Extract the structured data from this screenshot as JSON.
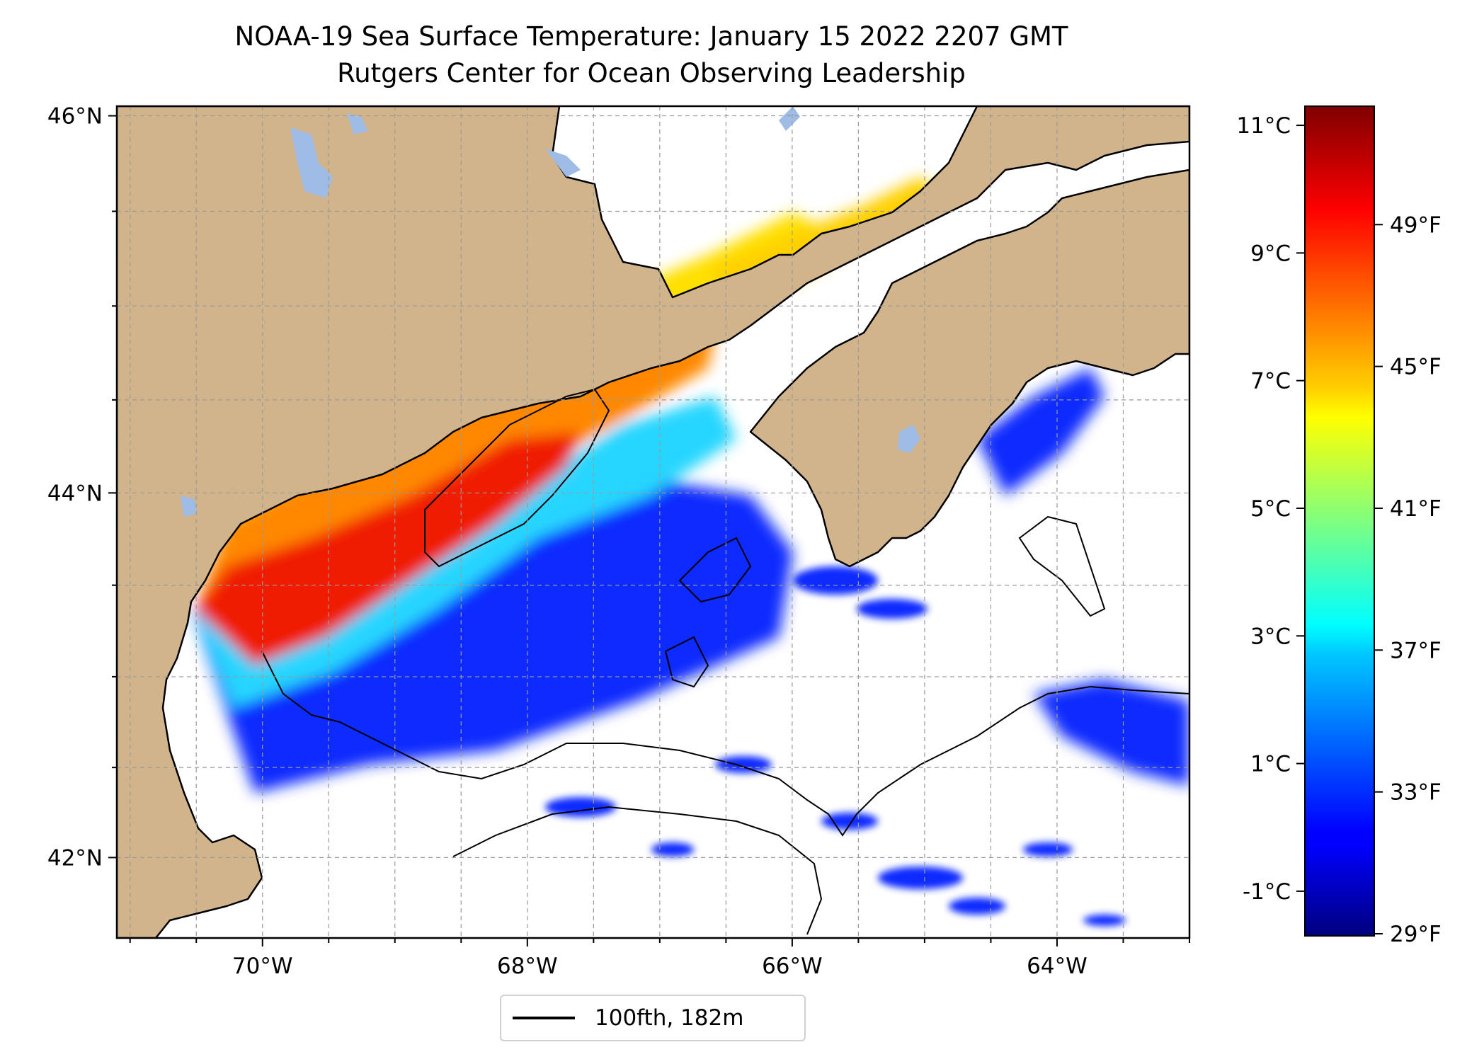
{
  "title": {
    "line1": "NOAA-19 Sea Surface Temperature: January 15 2022 2207 GMT",
    "line2": "Rutgers Center for Ocean Observing Leadership"
  },
  "map": {
    "lon_range": [
      -71.1,
      -63.0
    ],
    "lat_range": [
      41.55,
      46.05
    ],
    "lat_ticks": [
      {
        "value": 46,
        "label": "46°N"
      },
      {
        "value": 44,
        "label": "44°N"
      },
      {
        "value": 42,
        "label": "42°N"
      }
    ],
    "lon_ticks": [
      {
        "value": -70,
        "label": "70°W"
      },
      {
        "value": -68,
        "label": "68°W"
      },
      {
        "value": -66,
        "label": "66°W"
      },
      {
        "value": -64,
        "label": "64°W"
      }
    ],
    "grid": true,
    "land_color": "#d2b48c",
    "lake_color": "#9fbce6",
    "coast_color": "#000000"
  },
  "colorbar": {
    "colormap": "jet",
    "celsius_range": [
      -1.7,
      11.3
    ],
    "celsius_ticks": [
      {
        "value": 11,
        "label": "11°C"
      },
      {
        "value": 9,
        "label": "9°C"
      },
      {
        "value": 7,
        "label": "7°C"
      },
      {
        "value": 5,
        "label": "5°C"
      },
      {
        "value": 3,
        "label": "3°C"
      },
      {
        "value": 1,
        "label": "1°C"
      },
      {
        "value": -1,
        "label": "-1°C"
      }
    ],
    "fahrenheit_ticks": [
      {
        "value": 49,
        "label": "49°F"
      },
      {
        "value": 45,
        "label": "45°F"
      },
      {
        "value": 41,
        "label": "41°F"
      },
      {
        "value": 37,
        "label": "37°F"
      },
      {
        "value": 33,
        "label": "33°F"
      },
      {
        "value": 29,
        "label": "29°F"
      }
    ]
  },
  "legend": {
    "label": "100fth, 182m"
  }
}
